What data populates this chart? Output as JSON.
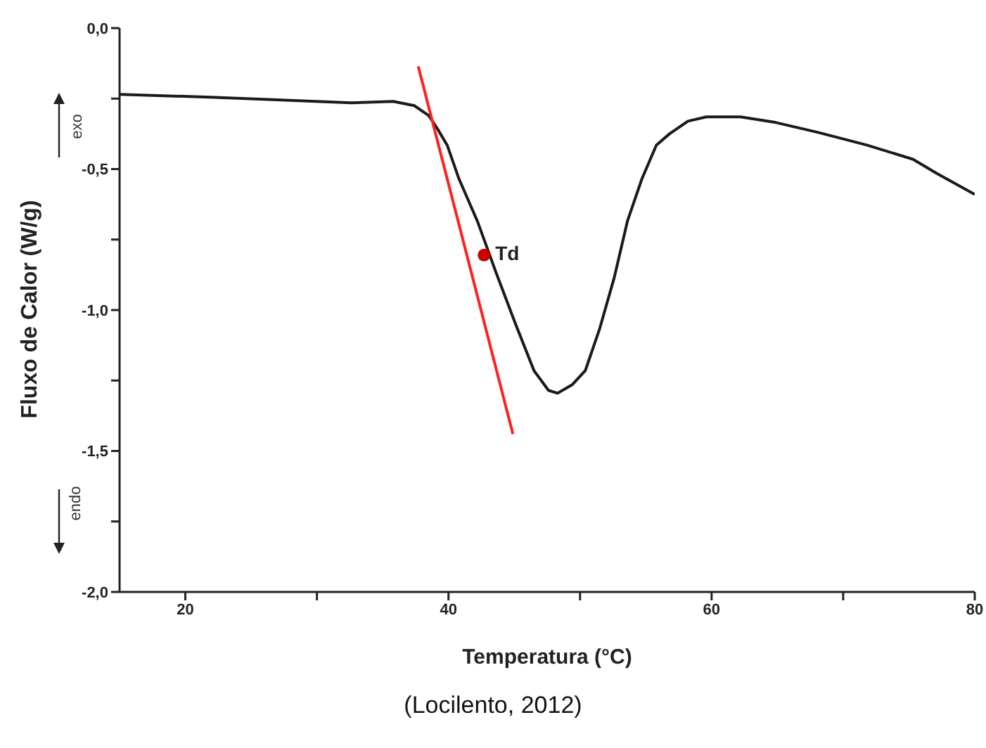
{
  "chart_data": {
    "type": "line",
    "xlabel": "Temperatura (°C)",
    "ylabel": "Fluxo de Calor (W/g)",
    "xlim": [
      15,
      80
    ],
    "ylim": [
      -2.0,
      0.0
    ],
    "xticks": [
      20,
      {
        "value": 30,
        "label": null
      },
      40,
      {
        "value": 50,
        "label": null
      },
      60,
      {
        "value": 70,
        "label": null
      },
      80
    ],
    "yticks": [
      {
        "value": -2.0,
        "label": "-2,0"
      },
      {
        "value": -1.75,
        "label": null
      },
      {
        "value": -1.5,
        "label": "-1,5"
      },
      {
        "value": -1.25,
        "label": null
      },
      {
        "value": -1.0,
        "label": "-1,0"
      },
      {
        "value": -0.75,
        "label": null
      },
      {
        "value": -0.5,
        "label": "-0,5"
      },
      {
        "value": -0.25,
        "label": null
      },
      {
        "value": 0.0,
        "label": "0,0"
      }
    ],
    "grid": false,
    "marker": "none",
    "line_style": "solid",
    "series": [
      {
        "color": "#1a1a1a",
        "x": [
          15,
          21.9,
          27.3,
          32.6,
          35.8,
          37.4,
          38.5,
          39.2,
          39.9,
          40.8,
          42.2,
          43.6,
          45.1,
          46.5,
          47.6,
          48.3,
          49.4,
          50.4,
          51.5,
          52.6,
          53.6,
          54.7,
          55.8,
          56.8,
          58.2,
          59.6,
          62.2,
          64.9,
          68.1,
          71.8,
          75.3,
          77.1,
          80
        ],
        "values": [
          -0.235,
          -0.245,
          -0.255,
          -0.265,
          -0.26,
          -0.275,
          -0.31,
          -0.36,
          -0.415,
          -0.535,
          -0.685,
          -0.865,
          -1.05,
          -1.215,
          -1.285,
          -1.295,
          -1.265,
          -1.215,
          -1.065,
          -0.885,
          -0.685,
          -0.535,
          -0.415,
          -0.375,
          -0.33,
          -0.315,
          -0.315,
          -0.335,
          -0.37,
          -0.415,
          -0.465,
          -0.515,
          -0.59
        ]
      },
      {
        "type": "line",
        "color": "#ff2020",
        "x": [
          37.7,
          44.9
        ],
        "values": [
          -0.135,
          -1.44
        ]
      },
      {
        "type": "scatter",
        "color": "#cc0000",
        "marker": "circle",
        "x": [
          42.7
        ],
        "values": [
          -0.805
        ]
      }
    ],
    "annotations": [
      "exo",
      "endo",
      {
        "text": "Td",
        "x": 42.7,
        "y": -0.805
      },
      "(Locilento, 2012)"
    ]
  }
}
